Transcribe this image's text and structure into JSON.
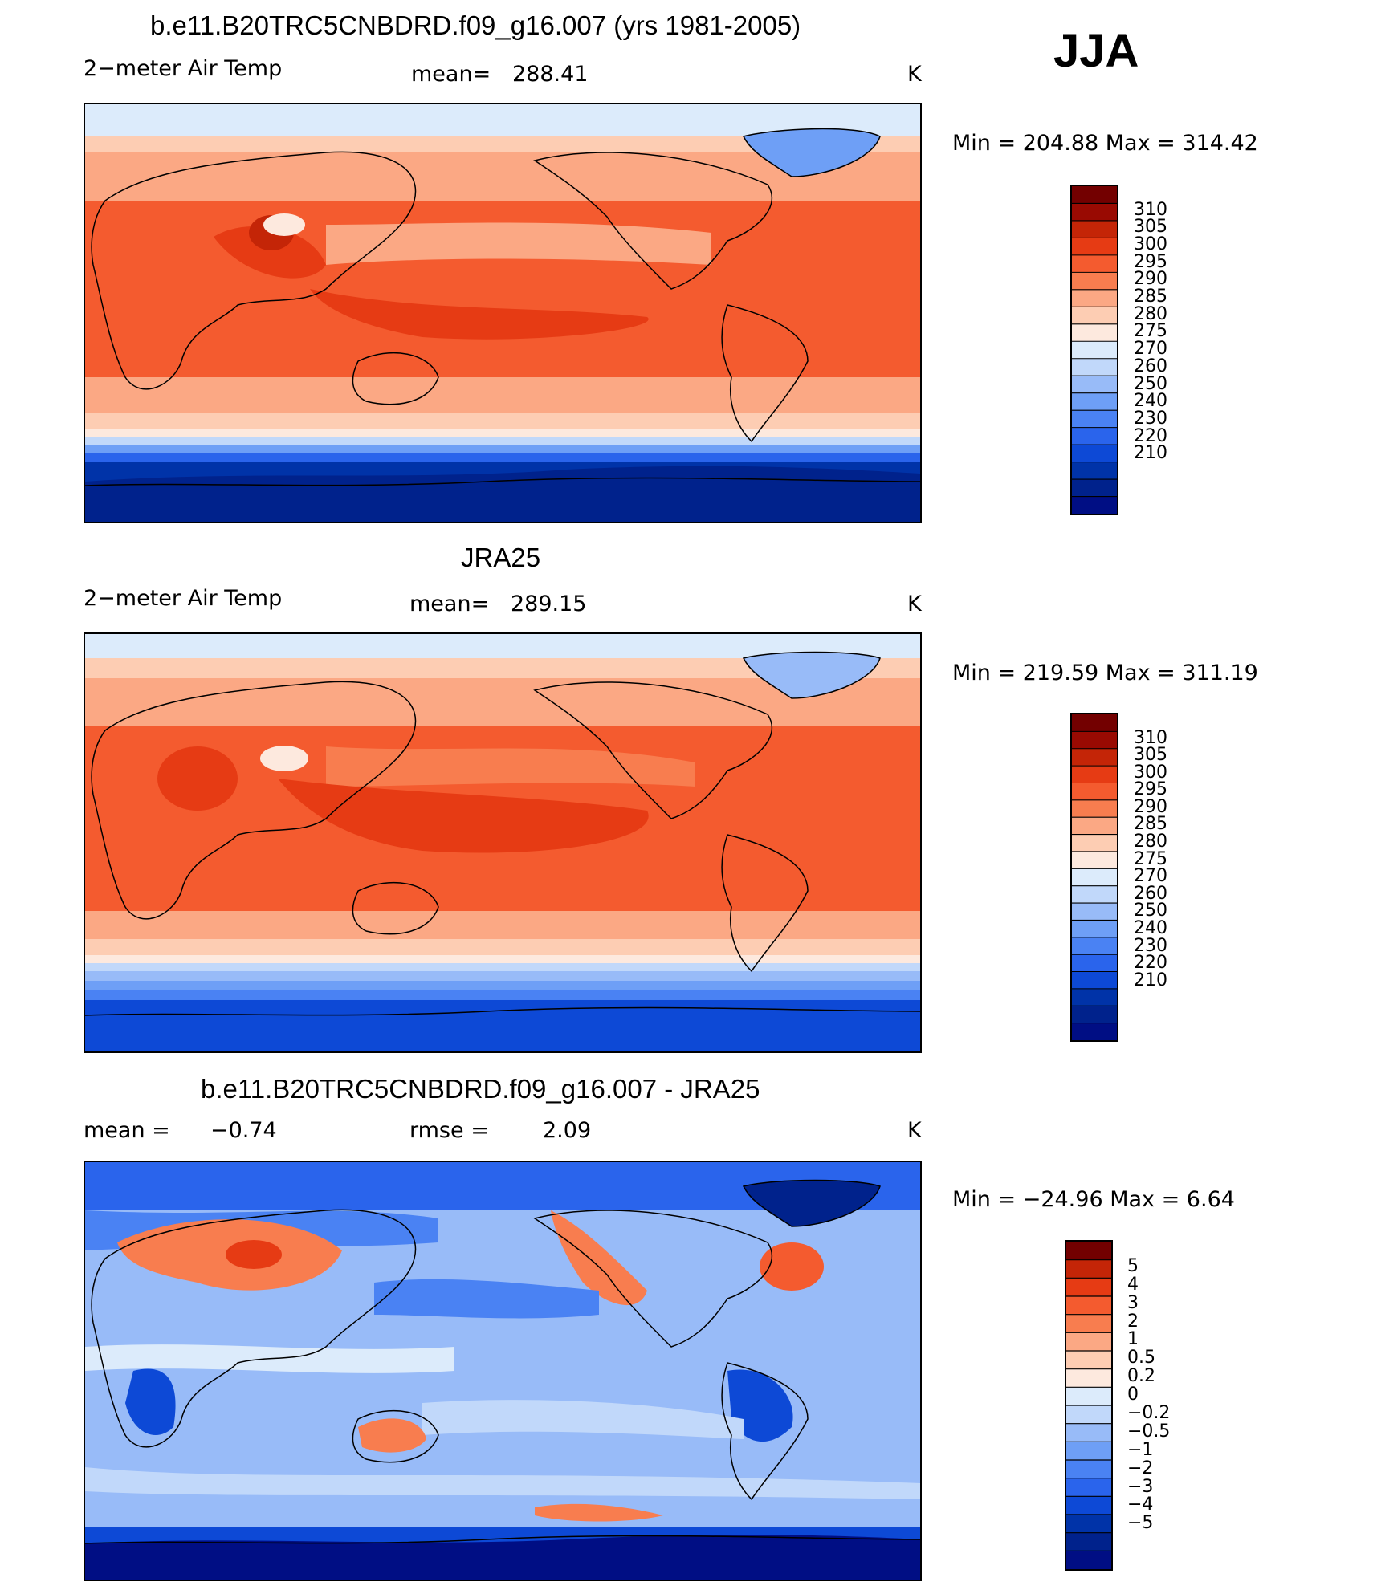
{
  "season": "JJA",
  "colors": {
    "abs_levels": [
      "#000e84",
      "#00228c",
      "#0033a8",
      "#0d49d6",
      "#2a64ec",
      "#4a82f3",
      "#6e9ff6",
      "#98bbf8",
      "#c1d8fa",
      "#dcebfb",
      "#fde9de",
      "#fdcdb3",
      "#fba884",
      "#f87d4f",
      "#f45b2f",
      "#e63b14",
      "#c42507",
      "#990a02",
      "#730000"
    ],
    "diff_levels": [
      "#000e84",
      "#00228c",
      "#0033a8",
      "#0d49d6",
      "#2a64ec",
      "#4a82f3",
      "#6e9ff6",
      "#98bbf8",
      "#c1d8fa",
      "#dcebfb",
      "#fde9de",
      "#fdcdb3",
      "#fba884",
      "#f87d4f",
      "#f45b2f",
      "#e63b14",
      "#c42507",
      "#730000"
    ]
  },
  "panels": [
    {
      "title": "b.e11.B20TRC5CNBDRD.f09_g16.007 (yrs 1981-2005)",
      "variable": "2−meter Air Temp",
      "stat_label": "mean=",
      "stat_value": "288.41",
      "units": "K",
      "minmax_label": "Min  =  204.88  Max  =  314.42",
      "colorbar_labels": [
        "310",
        "305",
        "300",
        "295",
        "290",
        "285",
        "280",
        "275",
        "270",
        "260",
        "250",
        "240",
        "230",
        "220",
        "210"
      ]
    },
    {
      "title": "JRA25",
      "variable": "2−meter Air Temp",
      "stat_label": "mean=",
      "stat_value": "289.15",
      "units": "K",
      "minmax_label": "Min  =  219.59  Max  =  311.19",
      "colorbar_labels": [
        "310",
        "305",
        "300",
        "295",
        "290",
        "285",
        "280",
        "275",
        "270",
        "260",
        "250",
        "240",
        "230",
        "220",
        "210"
      ]
    },
    {
      "title": "b.e11.B20TRC5CNBDRD.f09_g16.007 - JRA25",
      "stat1_label": "mean  =",
      "stat1_value": "−0.74",
      "stat2_label": "rmse  =",
      "stat2_value": "2.09",
      "units": "K",
      "minmax_label": "Min  =  −24.96  Max  =      6.64",
      "colorbar_labels": [
        "5",
        "4",
        "3",
        "2",
        "1",
        "0.5",
        "0.2",
        "0",
        "−0.2",
        "−0.5",
        "−1",
        "−2",
        "−3",
        "−4",
        "−5"
      ]
    }
  ]
}
